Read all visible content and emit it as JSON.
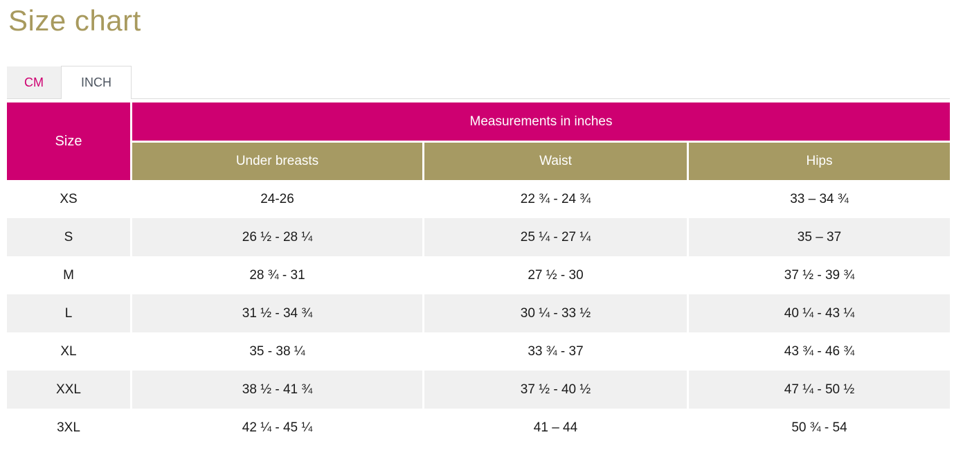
{
  "page_title": "Size chart",
  "colors": {
    "accent_pink": "#ce0071",
    "accent_olive": "#a69a63",
    "title_olive": "#a89a5e",
    "row_stripe": "#f0f0f0",
    "tab_border": "#dcdcdc"
  },
  "tabs": [
    {
      "label": "CM",
      "active": false
    },
    {
      "label": "INCH",
      "active": true
    }
  ],
  "table": {
    "size_header": "Size",
    "group_header": "Measurements in inches",
    "columns": [
      "Under breasts",
      "Waist",
      "Hips"
    ],
    "rows": [
      {
        "size": "XS",
        "under_breasts": "24-26",
        "waist": "22 ¾ - 24 ¾",
        "hips": "33 – 34 ¾"
      },
      {
        "size": "S",
        "under_breasts": "26 ½ - 28 ¼",
        "waist": "25 ¼ - 27 ¼",
        "hips": "35 – 37"
      },
      {
        "size": "M",
        "under_breasts": "28 ¾ - 31",
        "waist": "27 ½ - 30",
        "hips": "37 ½ - 39 ¾"
      },
      {
        "size": "L",
        "under_breasts": "31 ½ - 34 ¾",
        "waist": "30 ¼ - 33 ½",
        "hips": "40 ¼ - 43 ¼"
      },
      {
        "size": "XL",
        "under_breasts": "35 - 38 ¼",
        "waist": "33 ¾ - 37",
        "hips": "43 ¾ - 46 ¾"
      },
      {
        "size": "XXL",
        "under_breasts": "38 ½ - 41 ¾",
        "waist": "37 ½ - 40 ½",
        "hips": "47 ¼ - 50 ½"
      },
      {
        "size": "3XL",
        "under_breasts": "42 ¼ - 45 ¼",
        "waist": "41 – 44",
        "hips": "50 ¾ - 54"
      }
    ]
  }
}
